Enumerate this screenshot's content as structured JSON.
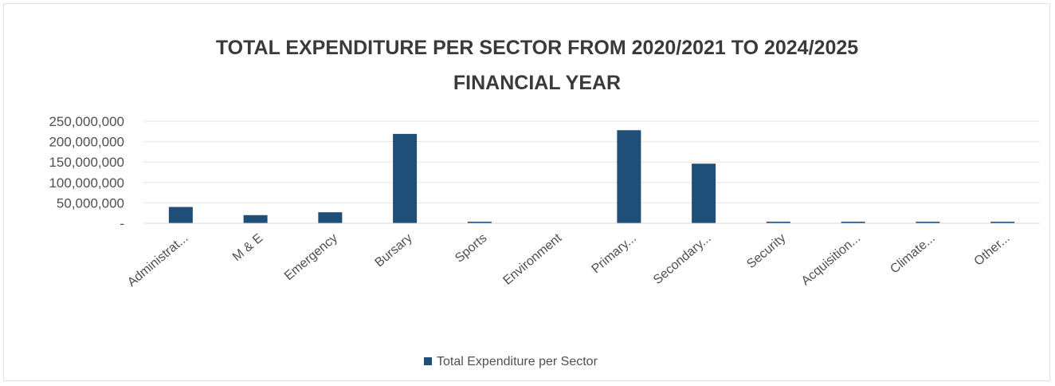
{
  "chart_data": {
    "type": "bar",
    "title": "TOTAL EXPENDITURE PER SECTOR FROM 2020/2021 TO 2024/2025 FINANCIAL YEAR",
    "title_lines": [
      "TOTAL EXPENDITURE PER SECTOR FROM 2020/2021 TO 2024/2025",
      "FINANCIAL YEAR"
    ],
    "categories": [
      "Administrat...",
      "M & E",
      "Emergency",
      "Bursary",
      "Sports",
      "Environment",
      "Primary...",
      "Secondary...",
      "Security",
      "Acquisition...",
      "Climate...",
      "Other..."
    ],
    "series": [
      {
        "name": "Total Expenditure per Sector",
        "color": "#1f4e79",
        "values": [
          40000000,
          20000000,
          27000000,
          219000000,
          500000,
          0,
          228000000,
          146000000,
          4000000,
          4000000,
          300000,
          2500000
        ]
      }
    ],
    "yticks": [
      "-",
      "50,000,000",
      "100,000,000",
      "150,000,000",
      "200,000,000",
      "250,000,000"
    ],
    "ylim": [
      0,
      250000000
    ],
    "grid": true,
    "legend_position": "bottom"
  }
}
